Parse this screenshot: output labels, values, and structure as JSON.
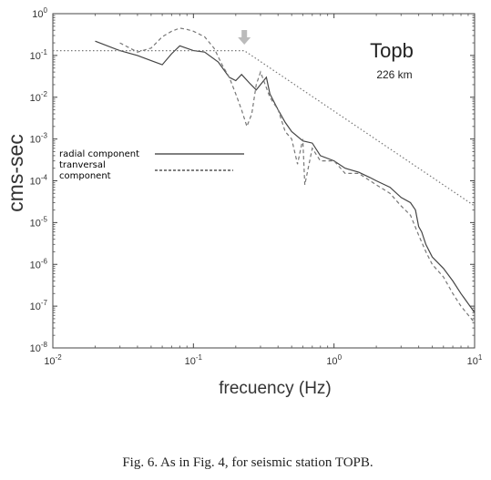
{
  "chart_data": {
    "type": "line",
    "title": "Topb",
    "subtitle": "226 km",
    "xlabel": "frecuency (Hz)",
    "ylabel": "cms-sec",
    "x_scale": "log",
    "y_scale": "log",
    "xlim": [
      0.01,
      10
    ],
    "ylim": [
      1e-08,
      1
    ],
    "x_ticks": [
      {
        "v": 0.01,
        "b": "10",
        "e": "-2"
      },
      {
        "v": 0.1,
        "b": "10",
        "e": "-1"
      },
      {
        "v": 1,
        "b": "10",
        "e": "0"
      },
      {
        "v": 10,
        "b": "10",
        "e": "1"
      }
    ],
    "y_ticks": [
      {
        "v": 1,
        "b": "10",
        "e": "0"
      },
      {
        "v": 0.1,
        "b": "10",
        "e": "-1"
      },
      {
        "v": 0.01,
        "b": "10",
        "e": "-2"
      },
      {
        "v": 0.001,
        "b": "10",
        "e": "-3"
      },
      {
        "v": 0.0001,
        "b": "10",
        "e": "-4"
      },
      {
        "v": 1e-05,
        "b": "10",
        "e": "-5"
      },
      {
        "v": 1e-06,
        "b": "10",
        "e": "-6"
      },
      {
        "v": 1e-07,
        "b": "10",
        "e": "-7"
      },
      {
        "v": 1e-08,
        "b": "10",
        "e": "-8"
      }
    ],
    "legend": {
      "position": "left",
      "radial": "radial component",
      "transversal_1": "tranversal",
      "transversal_2": "component"
    },
    "series": [
      {
        "name": "radial component",
        "style": "solid",
        "x": [
          0.02,
          0.03,
          0.04,
          0.05,
          0.06,
          0.07,
          0.08,
          0.1,
          0.12,
          0.15,
          0.18,
          0.2,
          0.22,
          0.25,
          0.28,
          0.3,
          0.33,
          0.35,
          0.4,
          0.45,
          0.5,
          0.6,
          0.7,
          0.8,
          1.0,
          1.2,
          1.5,
          1.8,
          2.0,
          2.5,
          3.0,
          3.5,
          3.8,
          4.0,
          4.2,
          4.5,
          5.0,
          6.0,
          7.0,
          8.0,
          10.0
        ],
        "y": [
          0.22,
          0.13,
          0.1,
          0.075,
          0.06,
          0.11,
          0.17,
          0.13,
          0.12,
          0.07,
          0.03,
          0.025,
          0.035,
          0.022,
          0.015,
          0.02,
          0.03,
          0.012,
          0.005,
          0.0025,
          0.0015,
          0.0009,
          0.0008,
          0.0004,
          0.0003,
          0.0002,
          0.00016,
          0.00012,
          0.0001,
          7e-05,
          4e-05,
          3e-05,
          2e-05,
          8e-06,
          6e-06,
          3e-06,
          1.5e-06,
          8e-07,
          4e-07,
          2e-07,
          7e-08
        ]
      },
      {
        "name": "tranversal component",
        "style": "dashed",
        "x": [
          0.03,
          0.04,
          0.05,
          0.06,
          0.07,
          0.08,
          0.09,
          0.1,
          0.12,
          0.14,
          0.16,
          0.18,
          0.2,
          0.22,
          0.24,
          0.26,
          0.28,
          0.3,
          0.35,
          0.4,
          0.45,
          0.5,
          0.55,
          0.6,
          0.62,
          0.7,
          0.8,
          1.0,
          1.2,
          1.5,
          2.0,
          2.5,
          3.0,
          3.5,
          4.0,
          4.5,
          5.0,
          6.0,
          7.0,
          8.0,
          10.0
        ],
        "y": [
          0.2,
          0.12,
          0.15,
          0.28,
          0.38,
          0.45,
          0.42,
          0.38,
          0.28,
          0.15,
          0.06,
          0.03,
          0.012,
          0.005,
          0.002,
          0.004,
          0.02,
          0.04,
          0.01,
          0.005,
          0.0015,
          0.001,
          0.00025,
          0.001,
          8e-05,
          0.0006,
          0.0003,
          0.0003,
          0.00015,
          0.00015,
          8e-05,
          5e-05,
          2.5e-05,
          1.5e-05,
          5e-06,
          2e-06,
          1e-06,
          5e-07,
          2e-07,
          1e-07,
          4e-08
        ]
      },
      {
        "name": "",
        "style": "dotted",
        "x": [
          0.01,
          0.23,
          10.0
        ],
        "y": [
          0.13,
          0.13,
          2.5e-05
        ]
      }
    ],
    "annotation": "arrow at ~0.23 Hz",
    "arrow_x": 0.23
  },
  "caption": "Fig. 6. As in Fig. 4, for seismic station TOPB."
}
